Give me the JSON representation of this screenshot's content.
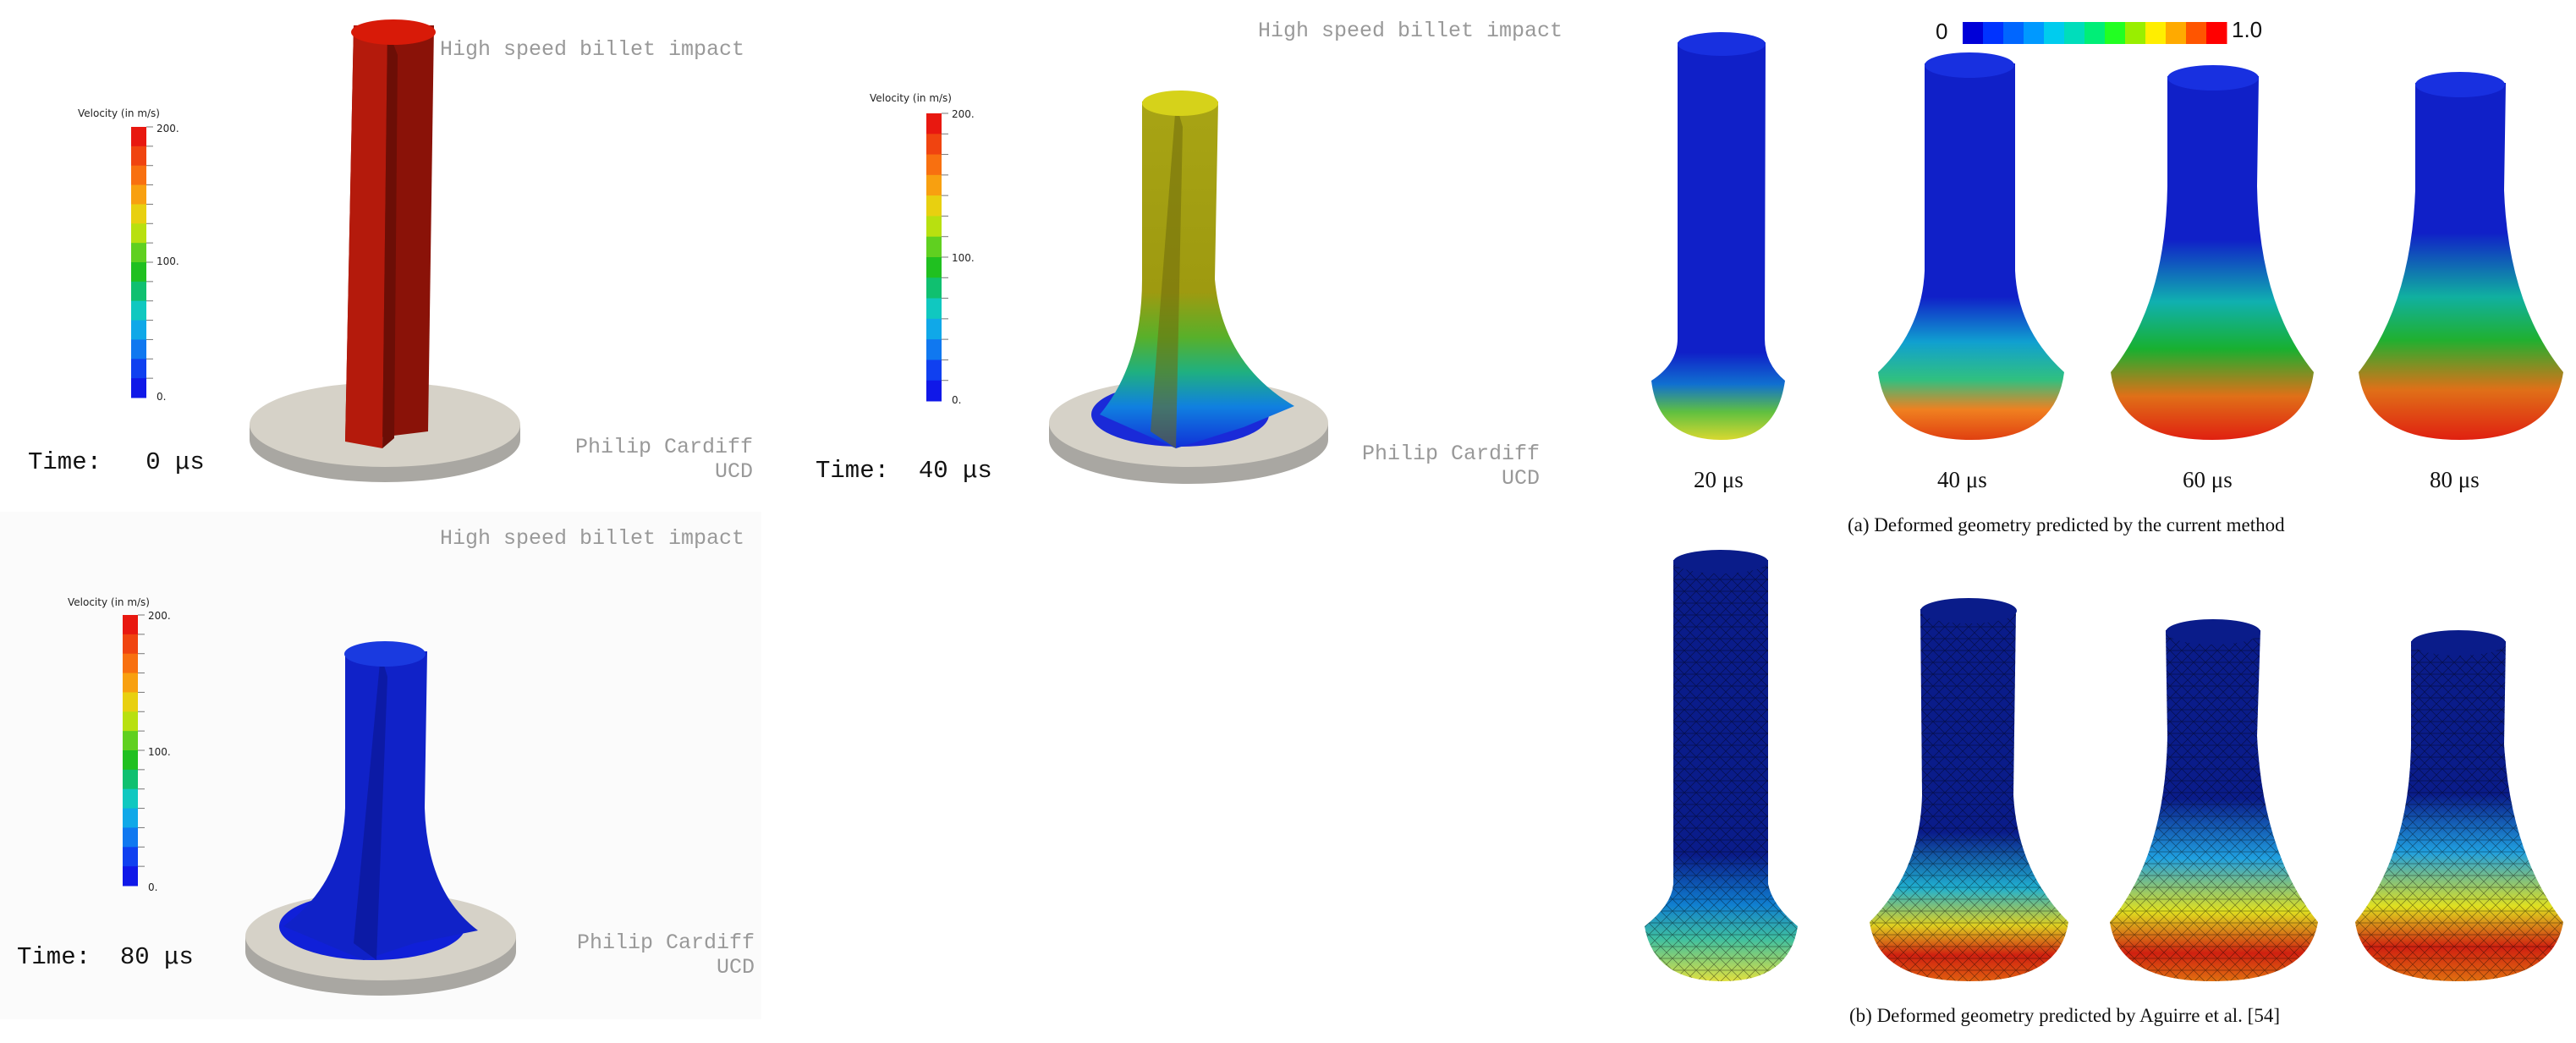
{
  "left_panels": [
    {
      "title": "High speed billet impact",
      "legend_title": "Velocity (in m/s)",
      "tick_max": "200.",
      "tick_mid": "100.",
      "tick_min": "0.",
      "time_label": "Time:   0 μs",
      "credit_line1": "Philip Cardiff",
      "credit_line2": "UCD",
      "billet_color": "#b41a0c"
    },
    {
      "title": "High speed billet impact",
      "legend_title": "Velocity (in m/s)",
      "tick_max": "200.",
      "tick_mid": "100.",
      "tick_min": "0.",
      "time_label": "Time:  40 μs",
      "credit_line1": "Philip Cardiff",
      "credit_line2": "UCD",
      "billet_color": "#9e9a10"
    },
    {
      "title": "High speed billet impact",
      "legend_title": "Velocity (in m/s)",
      "tick_max": "200.",
      "tick_mid": "100.",
      "tick_min": "0.",
      "time_label": "Time:  80 μs",
      "credit_line1": "Philip Cardiff",
      "credit_line2": "UCD",
      "billet_color": "#1020c8"
    }
  ],
  "right_figure": {
    "colorbar_min": "0",
    "colorbar_max": "1.0",
    "colorbar_colors": [
      "#0000d8",
      "#0033ff",
      "#0066ff",
      "#0099ff",
      "#00ccee",
      "#00ddbb",
      "#00ee77",
      "#22ff22",
      "#99ee00",
      "#ffee00",
      "#ffaa00",
      "#ff5500",
      "#ff0000"
    ],
    "time_labels": [
      "20 μs",
      "40 μs",
      "60 μs",
      "80 μs"
    ],
    "caption_a": "(a)  Deformed geometry predicted by the current method",
    "caption_b": "(b)  Deformed geometry predicted by Aguirre et al. [54]"
  }
}
